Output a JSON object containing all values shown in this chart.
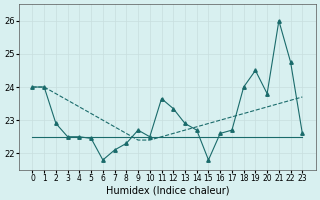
{
  "background_color": "#d8f0f0",
  "grid_color": "#c8dede",
  "line_color": "#1a6b6b",
  "line1_x": [
    0,
    1,
    2,
    3,
    4,
    5,
    6,
    7,
    8,
    9,
    10,
    11,
    12,
    13,
    14,
    15,
    16,
    17,
    18,
    19,
    20,
    21,
    22,
    23
  ],
  "line1_y": [
    24.0,
    24.0,
    22.9,
    22.5,
    22.5,
    22.45,
    21.8,
    22.1,
    22.3,
    22.7,
    22.5,
    23.65,
    23.35,
    22.9,
    22.7,
    21.8,
    22.6,
    22.7,
    24.0,
    24.5,
    23.8,
    26.0,
    24.75,
    22.6
  ],
  "line2_x": [
    0,
    1,
    2,
    3,
    4,
    5,
    6,
    7,
    8,
    9,
    10,
    11,
    12,
    13,
    14,
    15,
    16,
    17,
    18,
    19,
    20,
    21,
    22,
    23
  ],
  "line2_y": [
    24.0,
    24.0,
    23.8,
    23.6,
    23.4,
    23.2,
    23.0,
    22.8,
    22.6,
    22.4,
    22.4,
    22.5,
    22.6,
    22.7,
    22.8,
    22.9,
    23.0,
    23.1,
    23.2,
    23.3,
    23.4,
    23.5,
    23.6,
    23.7
  ],
  "line3_x": [
    0,
    3,
    4,
    5,
    6,
    7,
    8,
    9,
    10,
    11,
    12,
    13,
    14,
    15,
    16,
    17,
    18,
    19,
    20,
    21,
    22,
    23
  ],
  "line3_y": [
    22.5,
    22.5,
    22.5,
    22.5,
    22.5,
    22.5,
    22.5,
    22.5,
    22.5,
    22.5,
    22.5,
    22.5,
    22.5,
    22.5,
    22.5,
    22.5,
    22.5,
    22.5,
    22.5,
    22.5,
    22.5,
    22.5
  ],
  "xlabel": "Humidex (Indice chaleur)",
  "ylim": [
    21.5,
    26.5
  ],
  "yticks": [
    22,
    23,
    24,
    25,
    26
  ],
  "xticks": [
    0,
    1,
    2,
    3,
    4,
    5,
    6,
    7,
    8,
    9,
    10,
    11,
    12,
    13,
    14,
    15,
    16,
    17,
    18,
    19,
    20,
    21,
    22,
    23
  ],
  "xlabel_fontsize": 7
}
